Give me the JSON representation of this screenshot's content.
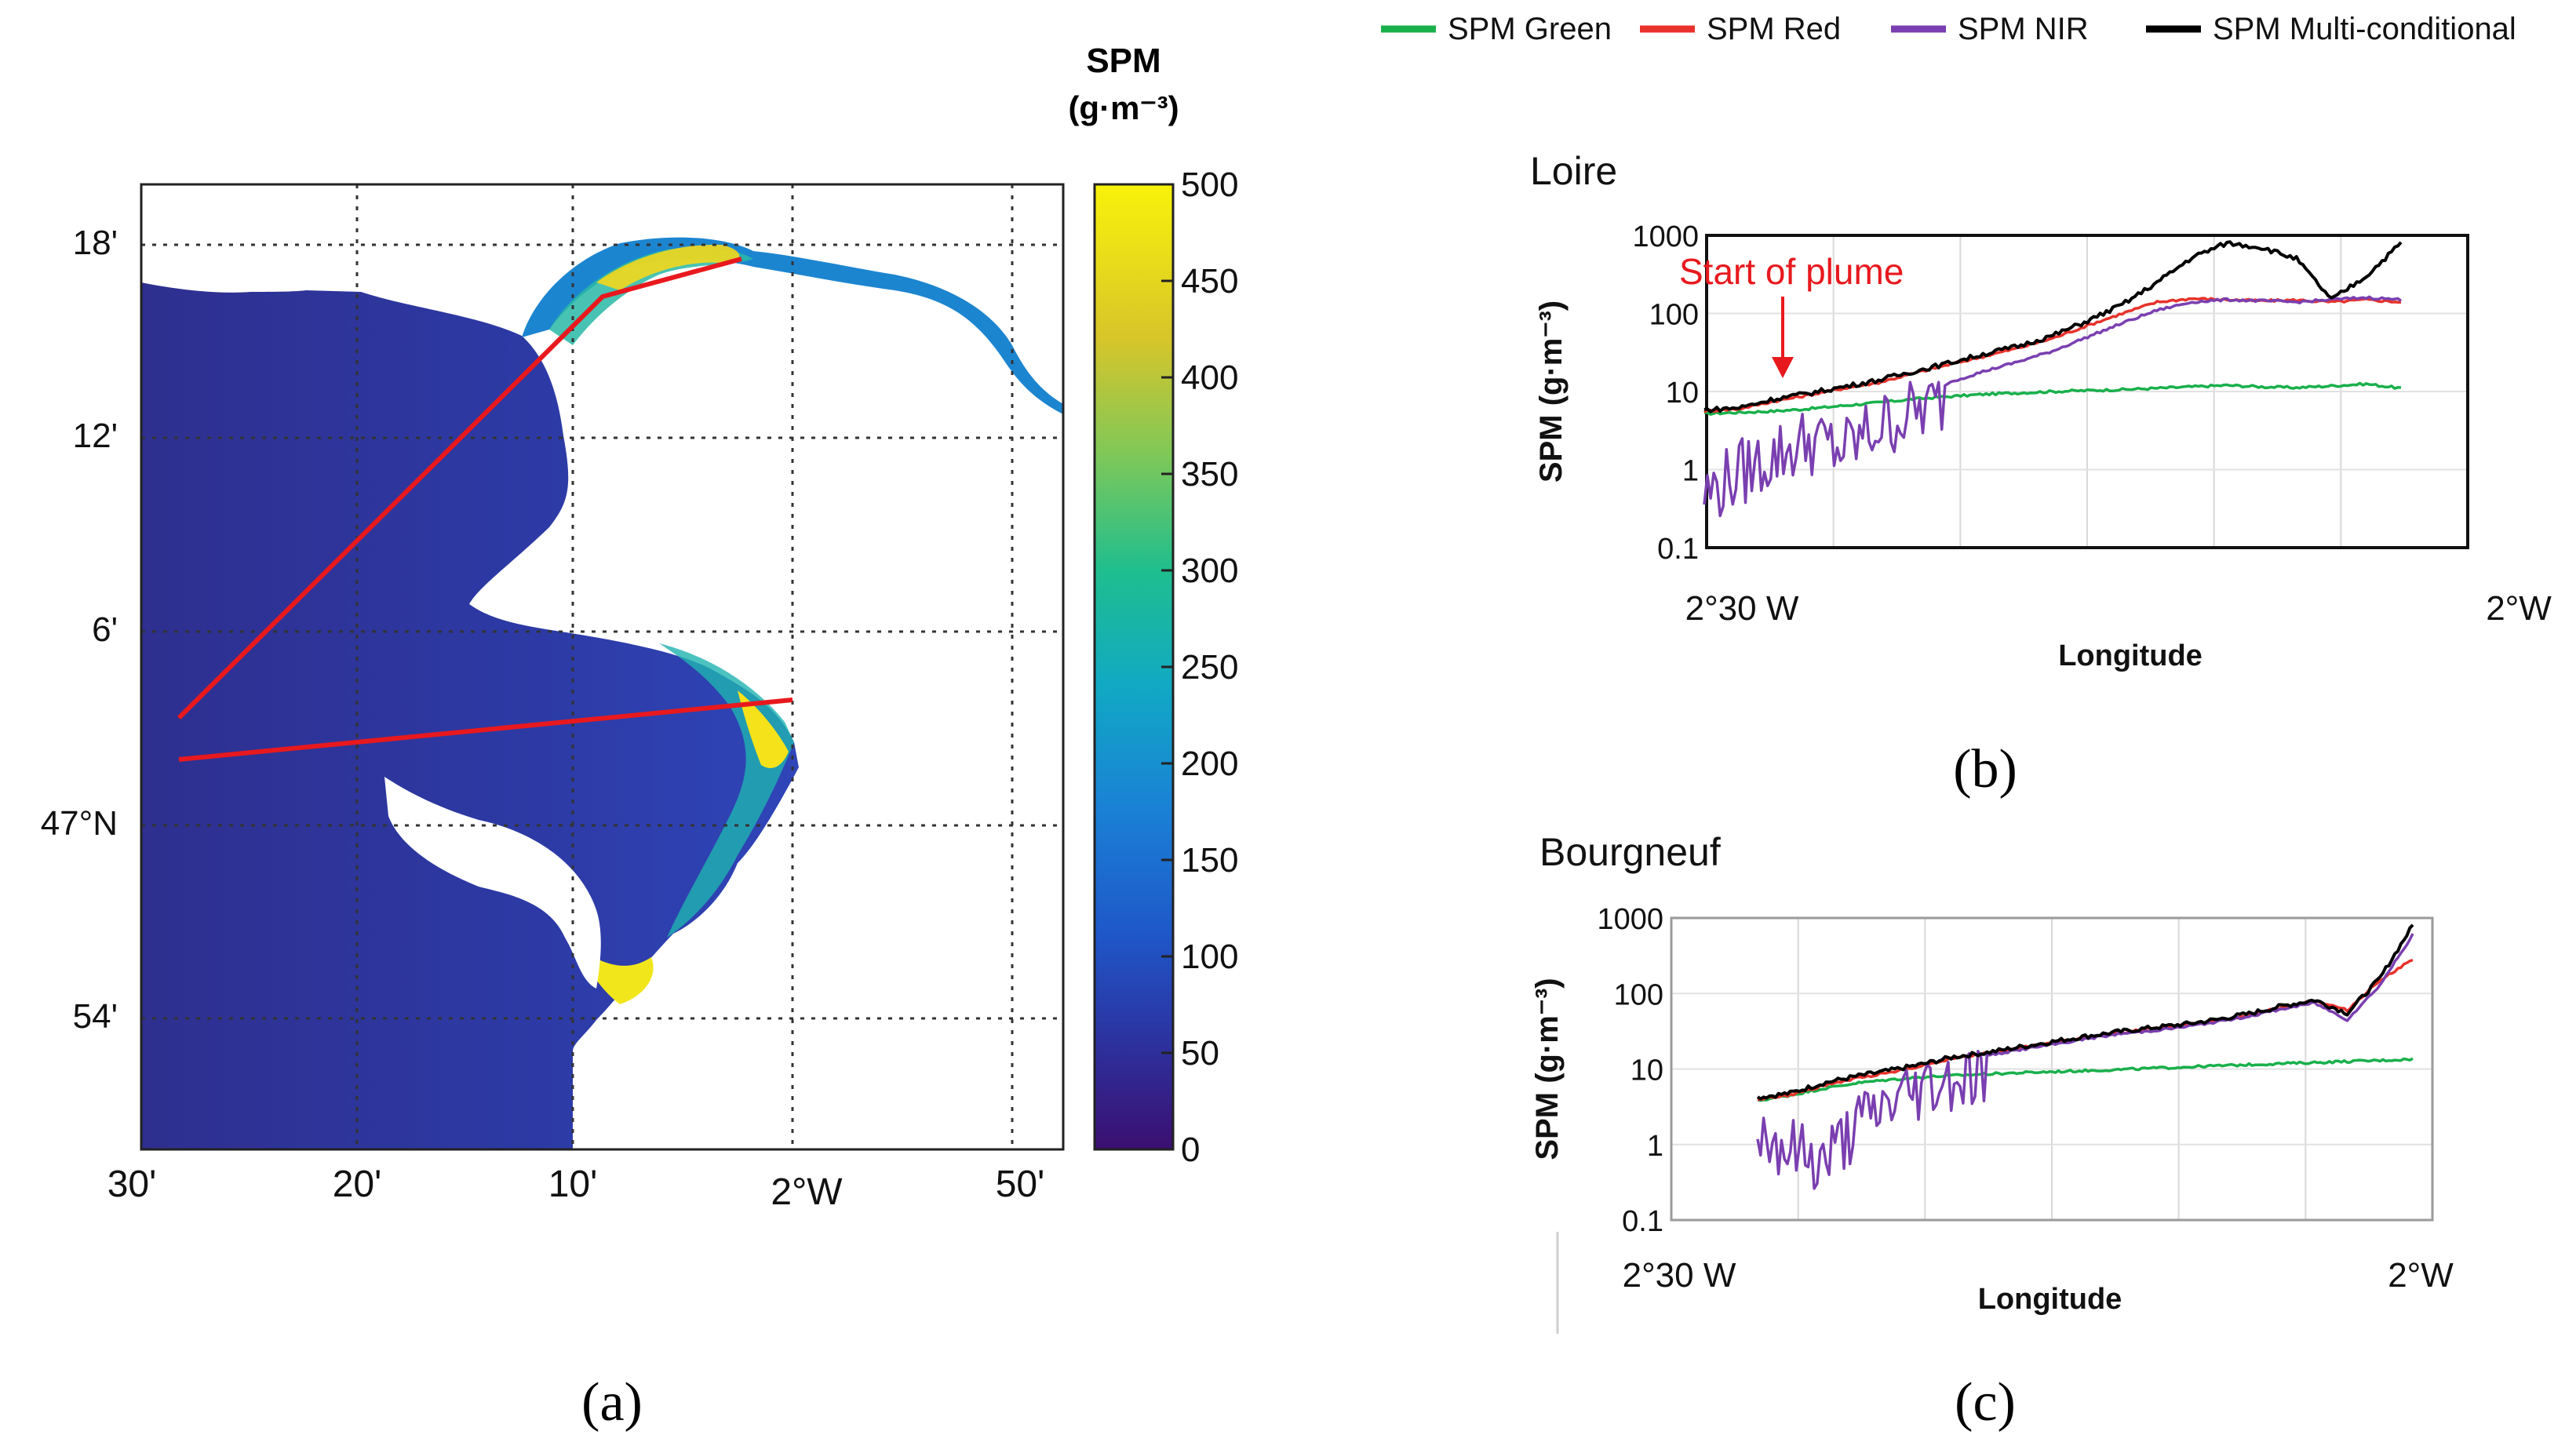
{
  "panel_labels": {
    "a": "(a)",
    "b": "(b)",
    "c": "(c)"
  },
  "legend": [
    {
      "name": "SPM Green",
      "color": "#19b04b"
    },
    {
      "name": "SPM Red",
      "color": "#e8322b"
    },
    {
      "name": "SPM NIR",
      "color": "#7a3fb0"
    },
    {
      "name": "SPM Multi-conditional",
      "color": "#000000"
    }
  ],
  "map": {
    "colorbar_title": "SPM",
    "colorbar_units": "(g·m⁻³)",
    "colorbar_ticks": [
      "500",
      "450",
      "400",
      "350",
      "300",
      "250",
      "200",
      "150",
      "100",
      "50",
      "0"
    ],
    "lat_labels": [
      "18'",
      "12'",
      "6'",
      "47°N",
      "54'"
    ],
    "lon_labels": [
      "30'",
      "20'",
      "10'",
      "2°W",
      "50'"
    ]
  },
  "chart_data": [
    {
      "type": "line",
      "title": "Loire",
      "xlabel": "Longitude",
      "ylabel": "SPM (g·m⁻³)",
      "yscale": "log",
      "ylim": [
        0.1,
        1000
      ],
      "y_ticks": [
        "1000",
        "100",
        "10",
        "1",
        "0.1"
      ],
      "x_tick_labels": [
        "2°30 W",
        "2°W"
      ],
      "annotation": "Start of plume",
      "x": [
        0,
        0.05,
        0.1,
        0.15,
        0.2,
        0.25,
        0.3,
        0.35,
        0.4,
        0.45,
        0.5,
        0.55,
        0.6,
        0.65,
        0.7,
        0.75,
        0.8,
        0.85,
        0.9,
        0.95,
        1.0
      ],
      "series": [
        {
          "name": "SPM Green",
          "values": [
            5.2,
            5.4,
            5.6,
            6.0,
            6.6,
            7.2,
            8.0,
            8.6,
            9.2,
            9.6,
            10,
            10.3,
            10.6,
            11,
            11.5,
            12,
            11.5,
            11.2,
            11.8,
            12.5,
            11
          ]
        },
        {
          "name": "SPM Red",
          "values": [
            5.6,
            6.0,
            7.5,
            9,
            11,
            13,
            17,
            22,
            28,
            36,
            48,
            70,
            100,
            140,
            155,
            150,
            145,
            148,
            140,
            150,
            140
          ]
        },
        {
          "name": "SPM NIR",
          "values": [
            0.8,
            1.5,
            2.5,
            4,
            3,
            6,
            9,
            13,
            18,
            24,
            33,
            50,
            75,
            110,
            140,
            150,
            145,
            140,
            150,
            160,
            150
          ]
        },
        {
          "name": "SPM Multi-conditional",
          "values": [
            5.8,
            6.2,
            8,
            9.5,
            11.5,
            14,
            18,
            23,
            30,
            38,
            52,
            80,
            130,
            250,
            520,
            800,
            700,
            500,
            150,
            300,
            800
          ]
        }
      ]
    },
    {
      "type": "line",
      "title": "Bourgneuf",
      "xlabel": "Longitude",
      "ylabel": "SPM (g·m⁻³)",
      "yscale": "log",
      "ylim": [
        0.1,
        1000
      ],
      "y_ticks": [
        "1000",
        "100",
        "10",
        "1",
        "0.1"
      ],
      "x_tick_labels": [
        "2°30 W",
        "2°W"
      ],
      "x": [
        0,
        0.05,
        0.1,
        0.15,
        0.2,
        0.25,
        0.3,
        0.35,
        0.4,
        0.45,
        0.5,
        0.55,
        0.6,
        0.65,
        0.7,
        0.75,
        0.8,
        0.85,
        0.9,
        0.95,
        1.0
      ],
      "series": [
        {
          "name": "SPM Green",
          "values": [
            3.8,
            4.5,
            5.5,
            6.5,
            7.2,
            7.8,
            8.2,
            8.6,
            8.9,
            9.2,
            9.5,
            9.8,
            10.2,
            10.6,
            11,
            11.4,
            11.8,
            12.2,
            12.6,
            13,
            13.5
          ]
        },
        {
          "name": "SPM Red",
          "values": [
            4,
            4.5,
            6,
            7.5,
            9,
            11,
            14,
            16,
            19,
            22,
            26,
            30,
            34,
            38,
            44,
            52,
            65,
            80,
            60,
            150,
            280
          ]
        },
        {
          "name": "SPM NIR",
          "values": [
            2.5,
            1.5,
            1,
            3,
            6,
            10,
            13,
            15,
            18,
            21,
            25,
            29,
            32,
            36,
            42,
            50,
            62,
            75,
            45,
            130,
            600
          ]
        },
        {
          "name": "SPM Multi-conditional",
          "values": [
            4.2,
            4.8,
            6.5,
            8,
            9.5,
            11.5,
            14.5,
            16.5,
            19.5,
            23,
            27,
            31,
            35,
            39,
            45,
            54,
            68,
            82,
            55,
            160,
            800
          ]
        }
      ]
    }
  ]
}
